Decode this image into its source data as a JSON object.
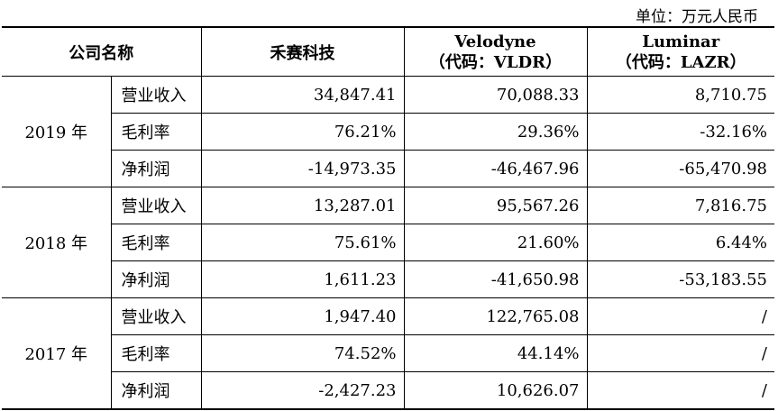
{
  "unit_label": "单位：万元人民币",
  "header": {
    "company_name": "公司名称",
    "hesai": "禾赛科技",
    "velodyne_name": "Velodyne",
    "velodyne_code": "（代码：VLDR）",
    "luminar_name": "Luminar",
    "luminar_code": "（代码：LAZR）"
  },
  "groups": [
    {
      "year": "2019 年",
      "rows": [
        {
          "metric": "营业收入",
          "hesai": "34,847.41",
          "velodyne": "70,088.33",
          "luminar": "8,710.75"
        },
        {
          "metric": "毛利率",
          "hesai": "76.21%",
          "velodyne": "29.36%",
          "luminar": "-32.16%"
        },
        {
          "metric": "净利润",
          "hesai": "-14,973.35",
          "velodyne": "-46,467.96",
          "luminar": "-65,470.98"
        }
      ]
    },
    {
      "year": "2018 年",
      "rows": [
        {
          "metric": "营业收入",
          "hesai": "13,287.01",
          "velodyne": "95,567.26",
          "luminar": "7,816.75"
        },
        {
          "metric": "毛利率",
          "hesai": "75.61%",
          "velodyne": "21.60%",
          "luminar": "6.44%"
        },
        {
          "metric": "净利润",
          "hesai": "1,611.23",
          "velodyne": "-41,650.98",
          "luminar": "-53,183.55"
        }
      ]
    },
    {
      "year": "2017 年",
      "rows": [
        {
          "metric": "营业收入",
          "hesai": "1,947.40",
          "velodyne": "122,765.08",
          "luminar": "/"
        },
        {
          "metric": "毛利率",
          "hesai": "74.52%",
          "velodyne": "44.14%",
          "luminar": "/"
        },
        {
          "metric": "净利润",
          "hesai": "-2,427.23",
          "velodyne": "10,626.07",
          "luminar": "/"
        }
      ]
    }
  ]
}
